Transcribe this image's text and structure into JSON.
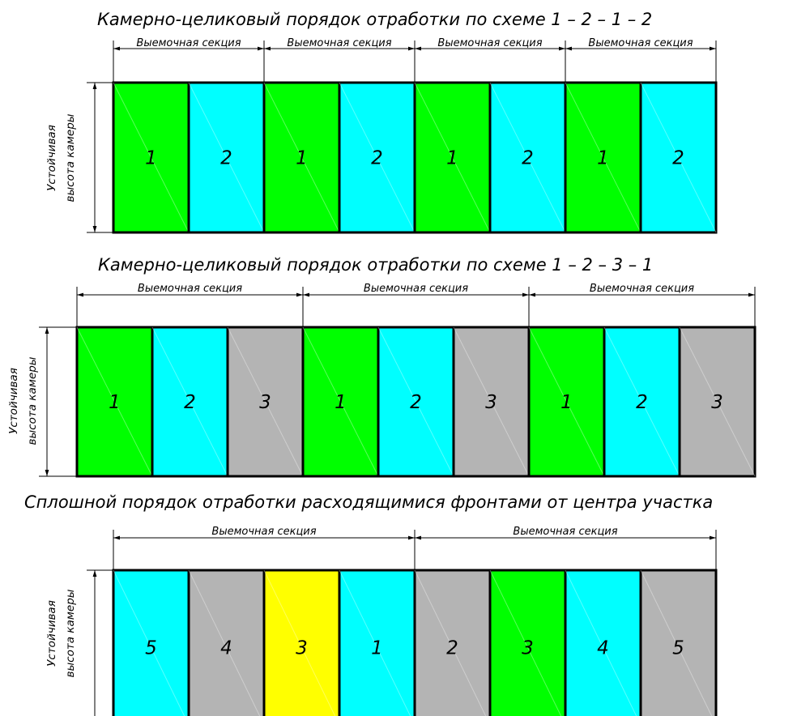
{
  "colors": {
    "1": "#00ff00",
    "2": "#00ffff",
    "3": "#b4b4b4",
    "4": "#ffff00"
  },
  "side_label": {
    "line1": "Устойчивая",
    "line2": "высота камеры"
  },
  "section_label": "Выемочная секция",
  "diagrams": [
    {
      "title": "Камерно-целиковый порядок отработки по схеме 1 – 2 – 1 – 2",
      "sections": [
        "Выемочная секция",
        "Выемочная секция",
        "Выемочная секция",
        "Выемочная секция"
      ],
      "cells": [
        {
          "label": "1",
          "color": "1"
        },
        {
          "label": "2",
          "color": "2"
        },
        {
          "label": "1",
          "color": "1"
        },
        {
          "label": "2",
          "color": "2"
        },
        {
          "label": "1",
          "color": "1"
        },
        {
          "label": "2",
          "color": "2"
        },
        {
          "label": "1",
          "color": "1"
        },
        {
          "label": "2",
          "color": "2"
        }
      ]
    },
    {
      "title": "Камерно-целиковый порядок отработки по схеме 1 – 2 – 3 – 1",
      "sections": [
        "Выемочная секция",
        "Выемочная секция",
        "Выемочная секция"
      ],
      "cells": [
        {
          "label": "1",
          "color": "1"
        },
        {
          "label": "2",
          "color": "2"
        },
        {
          "label": "3",
          "color": "3"
        },
        {
          "label": "1",
          "color": "1"
        },
        {
          "label": "2",
          "color": "2"
        },
        {
          "label": "3",
          "color": "3"
        },
        {
          "label": "1",
          "color": "1"
        },
        {
          "label": "2",
          "color": "2"
        },
        {
          "label": "3",
          "color": "3"
        }
      ]
    },
    {
      "title": "Сплошной порядок отработки расходящимися фронтами от центра участка",
      "sections": [
        "Выемочная секция",
        "Выемочная секция"
      ],
      "cells": [
        {
          "label": "5",
          "color": "2"
        },
        {
          "label": "4",
          "color": "3"
        },
        {
          "label": "3",
          "color": "4"
        },
        {
          "label": "1",
          "color": "2"
        },
        {
          "label": "2",
          "color": "3"
        },
        {
          "label": "3",
          "color": "1"
        },
        {
          "label": "4",
          "color": "2"
        },
        {
          "label": "5",
          "color": "3"
        }
      ]
    }
  ]
}
